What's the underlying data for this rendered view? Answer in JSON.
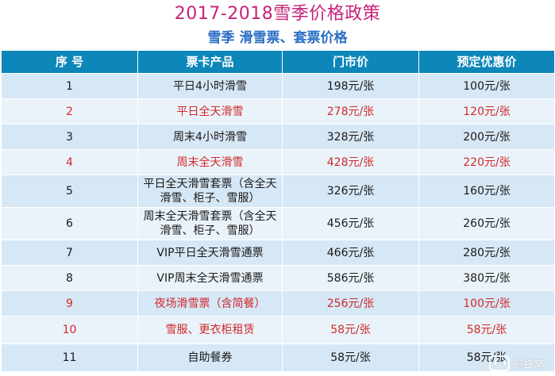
{
  "title": "2017-2018雪季价格政策",
  "subtitle": "雪季 滑雪票、套票价格",
  "table": {
    "headers": [
      "序 号",
      "票卡产品",
      "门市价",
      "预定优惠价"
    ],
    "rows": [
      {
        "no": "1",
        "product": "平日4小时滑雪",
        "retail": "198元/张",
        "discount": "100元/张",
        "highlight": false
      },
      {
        "no": "2",
        "product": "平日全天滑雪",
        "retail": "278元/张",
        "discount": "120元/张",
        "highlight": true
      },
      {
        "no": "3",
        "product": "周末4小时滑雪",
        "retail": "328元/张",
        "discount": "200元/张",
        "highlight": false
      },
      {
        "no": "4",
        "product": "周末全天滑雪",
        "retail": "428元/张",
        "discount": "220元/张",
        "highlight": true
      },
      {
        "no": "5",
        "product": "平日全天滑雪套票（含全天滑雪、柜子、雪服）",
        "retail": "326元/张",
        "discount": "160元/张",
        "highlight": false
      },
      {
        "no": "6",
        "product": "周末全天滑雪套票（含全天滑雪、柜子、雪服）",
        "retail": "456元/张",
        "discount": "260元/张",
        "highlight": false
      },
      {
        "no": "7",
        "product": "VIP平日全天滑雪通票",
        "retail": "466元/张",
        "discount": "280元/张",
        "highlight": false
      },
      {
        "no": "8",
        "product": "VIP周末全天滑雪通票",
        "retail": "586元/张",
        "discount": "380元/张",
        "highlight": false
      },
      {
        "no": "9",
        "product": "夜场滑雪票（含简餐）",
        "retail": "256元/张",
        "discount": "100元/张",
        "highlight": true
      },
      {
        "no": "10",
        "product": "雪服、更衣柜租赁",
        "retail": "58元/张",
        "discount": "58元/张",
        "highlight": true
      },
      {
        "no": "11",
        "product": "自助餐券",
        "retail": "58元/张",
        "discount": "58元/张",
        "highlight": false
      }
    ]
  },
  "watermark": "蚂蜂窝",
  "colors": {
    "header_bg": "#0d87b9",
    "title": "#c5237b",
    "subtitle": "#2a6fc4",
    "highlight_text": "#d02a2a"
  }
}
